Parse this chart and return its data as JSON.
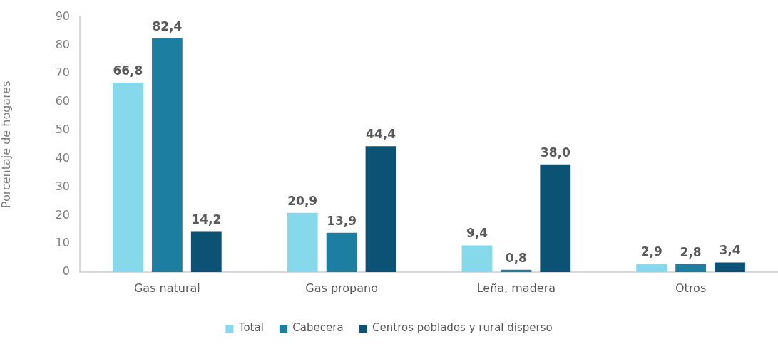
{
  "chart_data": {
    "type": "bar",
    "categories": [
      "Gas natural",
      "Gas propano",
      "Leña, madera",
      "Otros"
    ],
    "ylabel": "Porcentaje de hogares",
    "ylim": [
      0,
      90
    ],
    "yticks": [
      0,
      10,
      20,
      30,
      40,
      50,
      60,
      70,
      80,
      90
    ],
    "grid": false,
    "legend": "bottom",
    "series": [
      {
        "name": "Total",
        "color": "#86d9ea",
        "values": [
          66.8,
          20.9,
          9.4,
          2.9
        ],
        "value_labels": [
          "66,8",
          "20,9",
          "9,4",
          "2,9"
        ]
      },
      {
        "name": "Cabecera",
        "color": "#1c7fa1",
        "values": [
          82.4,
          13.9,
          0.8,
          2.8
        ],
        "value_labels": [
          "82,4",
          "13,9",
          "0,8",
          "2,8"
        ]
      },
      {
        "name": "Centros poblados y rural disperso",
        "color": "#0c5275",
        "values": [
          14.2,
          44.4,
          38.0,
          3.4
        ],
        "value_labels": [
          "14,2",
          "44,4",
          "38,0",
          "3,4"
        ]
      }
    ]
  }
}
